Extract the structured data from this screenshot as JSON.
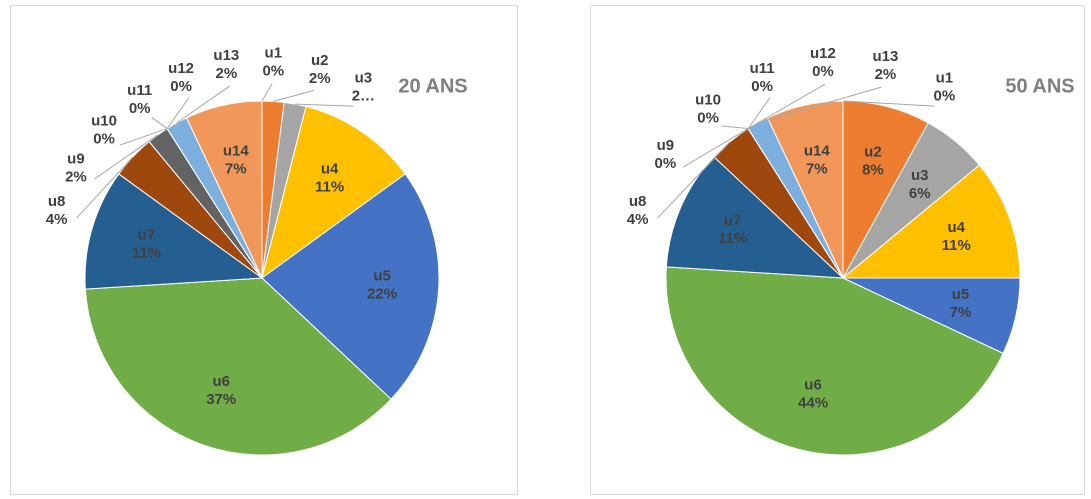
{
  "chart_data": [
    {
      "type": "pie",
      "title": "20 ANS",
      "categories": [
        "u1",
        "u2",
        "u3",
        "u4",
        "u5",
        "u6",
        "u7",
        "u8",
        "u9",
        "u10",
        "u11",
        "u12",
        "u13",
        "u14"
      ],
      "values": [
        0,
        2,
        2,
        11,
        22,
        37,
        11,
        4,
        2,
        0,
        0,
        0,
        2,
        7
      ],
      "value_labels": [
        "0%",
        "2%",
        "2…",
        "11%",
        "22%",
        "37%",
        "11%",
        "4%",
        "2%",
        "0%",
        "0%",
        "0%",
        "2%",
        "7%"
      ],
      "colors": [
        "#5b9bd5",
        "#ed7d31",
        "#a5a5a5",
        "#ffc000",
        "#4472c4",
        "#70ad47",
        "#255e91",
        "#9e480e",
        "#636363",
        "#997300",
        "#264478",
        "#43682b",
        "#7cafdd",
        "#f1975a"
      ]
    },
    {
      "type": "pie",
      "title": "50 ANS",
      "categories": [
        "u1",
        "u2",
        "u3",
        "u4",
        "u5",
        "u6",
        "u7",
        "u8",
        "u9",
        "u10",
        "u11",
        "u12",
        "u13",
        "u14"
      ],
      "values": [
        0,
        8,
        6,
        11,
        7,
        44,
        11,
        4,
        0,
        0,
        0,
        0,
        2,
        7
      ],
      "value_labels": [
        "0%",
        "8%",
        "6%",
        "11%",
        "7%",
        "44%",
        "11%",
        "4%",
        "0%",
        "0%",
        "0%",
        "0%",
        "2%",
        "7%"
      ],
      "colors": [
        "#5b9bd5",
        "#ed7d31",
        "#a5a5a5",
        "#ffc000",
        "#4472c4",
        "#70ad47",
        "#255e91",
        "#9e480e",
        "#636363",
        "#997300",
        "#264478",
        "#43682b",
        "#7cafdd",
        "#f1975a"
      ]
    }
  ]
}
